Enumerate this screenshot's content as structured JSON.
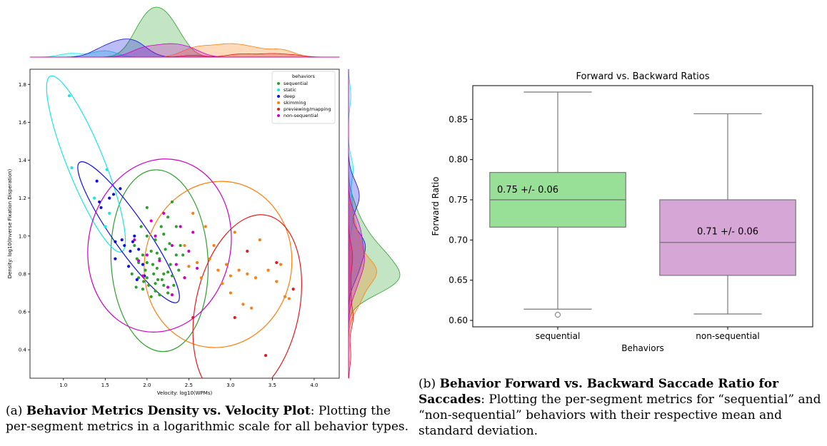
{
  "chart_data": [
    {
      "type": "scatter",
      "title": "",
      "xlabel": "Velocity: log10(WPMs)",
      "ylabel": "Density: log10(Inverse Fixation Disperation)",
      "xlim": [
        0.6,
        4.3
      ],
      "ylim": [
        0.25,
        1.88
      ],
      "x_ticks": [
        "1.0",
        "1.5",
        "2.0",
        "2.5",
        "3.0",
        "3.5",
        "4.0"
      ],
      "y_ticks": [
        "0.4",
        "0.6",
        "0.8",
        "1.0",
        "1.2",
        "1.4",
        "1.6",
        "1.8"
      ],
      "legend": {
        "title": "behaviors",
        "position": "top-right"
      },
      "marginals": "kde density curves on top (velocity) and right (density)",
      "series": [
        {
          "name": "sequential",
          "color": "#2ca02c",
          "ellipse": {
            "cx": 2.15,
            "cy": 0.87,
            "rx": 0.58,
            "ry": 0.48,
            "angle": -3
          },
          "points": [
            [
              2.0,
              0.78
            ],
            [
              2.1,
              0.75
            ],
            [
              2.2,
              0.8
            ],
            [
              1.9,
              0.86
            ],
            [
              2.05,
              0.92
            ],
            [
              2.15,
              0.88
            ],
            [
              2.25,
              0.7
            ],
            [
              1.95,
              0.72
            ],
            [
              2.3,
              0.79
            ],
            [
              2.1,
              0.98
            ],
            [
              1.85,
              0.95
            ],
            [
              2.0,
              1.0
            ],
            [
              2.2,
              1.01
            ],
            [
              2.35,
              0.9
            ],
            [
              2.05,
              0.68
            ],
            [
              1.9,
              0.78
            ],
            [
              2.12,
              0.83
            ],
            [
              2.28,
              0.85
            ],
            [
              1.98,
              0.82
            ],
            [
              2.18,
              0.77
            ],
            [
              2.25,
              1.1
            ],
            [
              2.0,
              1.15
            ],
            [
              2.4,
              0.95
            ],
            [
              1.82,
              0.8
            ],
            [
              2.1,
              0.71
            ],
            [
              2.32,
              0.74
            ],
            [
              1.95,
              0.9
            ],
            [
              2.22,
              0.93
            ],
            [
              2.07,
              0.85
            ],
            [
              2.15,
              0.69
            ],
            [
              2.38,
              0.82
            ],
            [
              1.88,
              0.88
            ],
            [
              2.45,
              0.78
            ],
            [
              2.02,
              0.74
            ],
            [
              2.27,
              0.96
            ],
            [
              1.93,
              1.05
            ],
            [
              2.17,
              1.05
            ],
            [
              2.3,
              1.18
            ],
            [
              2.08,
              0.8
            ],
            [
              2.2,
              0.74
            ],
            [
              1.96,
              0.76
            ],
            [
              2.12,
              0.91
            ],
            [
              2.35,
              1.05
            ],
            [
              2.0,
              0.86
            ],
            [
              2.25,
              0.81
            ],
            [
              1.87,
              0.73
            ],
            [
              2.43,
              0.9
            ],
            [
              2.13,
              0.77
            ]
          ]
        },
        {
          "name": "static",
          "color": "#17e6e6",
          "ellipse": {
            "cx": 1.27,
            "cy": 1.38,
            "rx": 0.22,
            "ry": 0.5,
            "angle": -22
          },
          "points": [
            [
              1.07,
              1.74
            ],
            [
              1.1,
              1.36
            ],
            [
              1.37,
              1.2
            ],
            [
              1.52,
              1.35
            ],
            [
              1.55,
              1.12
            ],
            [
              1.5,
              1.05
            ]
          ]
        },
        {
          "name": "deep",
          "color": "#1010e0",
          "ellipse": {
            "cx": 1.78,
            "cy": 1.02,
            "rx": 0.2,
            "ry": 0.45,
            "angle": -35
          },
          "points": [
            [
              1.4,
              1.29
            ],
            [
              1.45,
              1.15
            ],
            [
              1.43,
              1.18
            ],
            [
              1.55,
              1.2
            ],
            [
              1.6,
              1.22
            ],
            [
              1.68,
              1.25
            ],
            [
              1.62,
              0.97
            ],
            [
              1.73,
              0.95
            ],
            [
              1.8,
              0.92
            ],
            [
              1.85,
              1.0
            ],
            [
              1.9,
              0.93
            ],
            [
              1.95,
              0.85
            ],
            [
              1.97,
              0.79
            ],
            [
              1.78,
              0.84
            ],
            [
              1.62,
              0.88
            ],
            [
              1.88,
              0.77
            ],
            [
              1.7,
              0.98
            ],
            [
              1.83,
              0.97
            ]
          ]
        },
        {
          "name": "skimming",
          "color": "#ff7f0e",
          "ellipse": {
            "cx": 2.85,
            "cy": 0.85,
            "rx": 0.88,
            "ry": 0.44,
            "angle": 10
          },
          "points": [
            [
              2.45,
              0.95
            ],
            [
              2.55,
              1.12
            ],
            [
              2.7,
              1.05
            ],
            [
              2.8,
              0.95
            ],
            [
              2.95,
              0.85
            ],
            [
              3.0,
              0.79
            ],
            [
              3.1,
              0.82
            ],
            [
              3.2,
              0.8
            ],
            [
              3.3,
              0.78
            ],
            [
              3.45,
              0.82
            ],
            [
              3.55,
              0.76
            ],
            [
              3.65,
              0.68
            ],
            [
              3.7,
              0.67
            ],
            [
              3.25,
              0.62
            ],
            [
              3.15,
              0.64
            ],
            [
              2.9,
              0.75
            ],
            [
              2.75,
              0.88
            ],
            [
              2.6,
              0.86
            ],
            [
              2.5,
              0.84
            ],
            [
              3.05,
              1.02
            ],
            [
              3.35,
              0.98
            ],
            [
              2.65,
              0.78
            ],
            [
              2.85,
              0.82
            ],
            [
              3.6,
              0.85
            ],
            [
              3.0,
              0.7
            ]
          ]
        },
        {
          "name": "previewing/mapping",
          "color": "#e41a1c",
          "ellipse": {
            "cx": 3.2,
            "cy": 0.62,
            "rx": 0.62,
            "ry": 0.5,
            "angle": 12
          },
          "points": [
            [
              2.55,
              0.57
            ],
            [
              3.05,
              0.57
            ],
            [
              3.42,
              0.37
            ],
            [
              3.75,
              0.72
            ],
            [
              3.2,
              0.92
            ],
            [
              3.55,
              0.86
            ]
          ]
        },
        {
          "name": "non-sequential",
          "color": "#cc00cc",
          "ellipse": {
            "cx": 2.15,
            "cy": 0.95,
            "rx": 0.85,
            "ry": 0.46,
            "angle": 12
          },
          "points": [
            [
              2.0,
              0.9
            ],
            [
              2.1,
              1.0
            ],
            [
              2.3,
              0.95
            ],
            [
              2.15,
              0.87
            ],
            [
              1.95,
              0.79
            ],
            [
              2.4,
              1.05
            ],
            [
              2.5,
              0.92
            ],
            [
              2.25,
              0.73
            ],
            [
              2.05,
              1.08
            ],
            [
              2.35,
              0.85
            ],
            [
              2.45,
              0.78
            ],
            [
              1.85,
              0.98
            ],
            [
              2.2,
              1.12
            ],
            [
              2.6,
              0.83
            ],
            [
              2.3,
              0.69
            ],
            [
              1.9,
              0.87
            ],
            [
              2.55,
              1.02
            ]
          ]
        }
      ]
    },
    {
      "type": "box",
      "title": "Forward vs. Backward Ratios",
      "xlabel": "Behaviors",
      "ylabel": "Forward Ratio",
      "ylim": [
        0.592,
        0.892
      ],
      "y_ticks": [
        "0.60",
        "0.65",
        "0.70",
        "0.75",
        "0.80",
        "0.85"
      ],
      "categories": [
        "sequential",
        "non-sequential"
      ],
      "boxes": [
        {
          "name": "sequential",
          "color": "#98e098",
          "whisker_low": 0.614,
          "q1": 0.716,
          "median": 0.75,
          "q3": 0.784,
          "whisker_high": 0.884,
          "outliers": [
            0.607
          ],
          "annotation": "0.75 +/- 0.06"
        },
        {
          "name": "non-sequential",
          "color": "#d6a6d6",
          "whisker_low": 0.608,
          "q1": 0.656,
          "median": 0.697,
          "q3": 0.75,
          "whisker_high": 0.857,
          "outliers": [],
          "annotation": "0.71 +/- 0.06"
        }
      ]
    }
  ],
  "captions": {
    "a_label": "(a) ",
    "a_bold": "Behavior Metrics Density vs. Velocity Plot",
    "a_text": ": Plotting the per-segment metrics in a logarithmic scale for all behavior types.",
    "b_label": "(b) ",
    "b_bold": "Behavior Forward vs. Backward Saccade Ratio for Saccades",
    "b_text": ": Plotting the per-segment metrics for “sequential” and “non-sequential” behaviors with their respective mean and standard deviation."
  }
}
